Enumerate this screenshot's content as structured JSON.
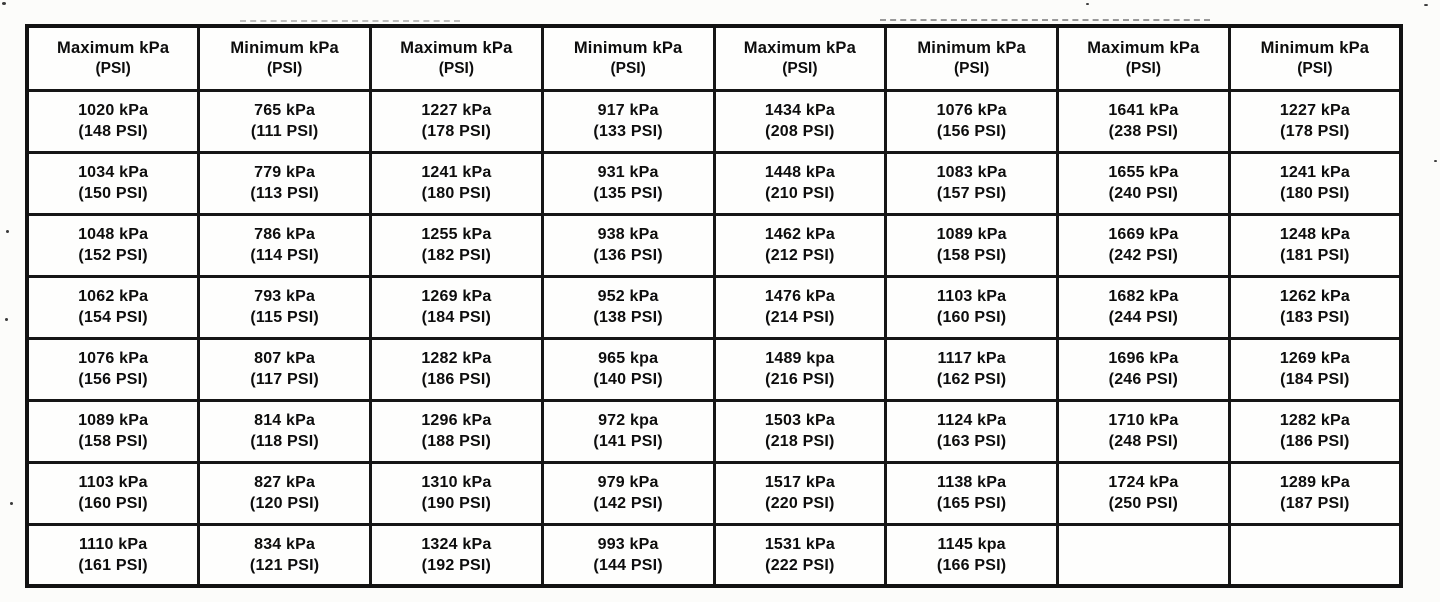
{
  "table": {
    "headers": [
      {
        "line1": "Maximum kPa",
        "line2": "(PSI)"
      },
      {
        "line1": "Minimum kPa",
        "line2": "(PSI)"
      },
      {
        "line1": "Maximum kPa",
        "line2": "(PSI)"
      },
      {
        "line1": "Minimum kPa",
        "line2": "(PSI)"
      },
      {
        "line1": "Maximum kPa",
        "line2": "(PSI)"
      },
      {
        "line1": "Minimum kPa",
        "line2": "(PSI)"
      },
      {
        "line1": "Maximum kPa",
        "line2": "(PSI)"
      },
      {
        "line1": "Minimum kPa",
        "line2": "(PSI)"
      }
    ],
    "rows": [
      [
        {
          "kpa": "1020 kPa",
          "psi": "(148 PSI)"
        },
        {
          "kpa": "765 kPa",
          "psi": "(111 PSI)"
        },
        {
          "kpa": "1227 kPa",
          "psi": "(178 PSI)"
        },
        {
          "kpa": "917 kPa",
          "psi": "(133 PSI)"
        },
        {
          "kpa": "1434 kPa",
          "psi": "(208 PSI)"
        },
        {
          "kpa": "1076 kPa",
          "psi": "(156 PSI)"
        },
        {
          "kpa": "1641 kPa",
          "psi": "(238 PSI)"
        },
        {
          "kpa": "1227 kPa",
          "psi": "(178 PSI)"
        }
      ],
      [
        {
          "kpa": "1034 kPa",
          "psi": "(150 PSI)"
        },
        {
          "kpa": "779 kPa",
          "psi": "(113 PSI)"
        },
        {
          "kpa": "1241 kPa",
          "psi": "(180 PSI)"
        },
        {
          "kpa": "931 kPa",
          "psi": "(135 PSI)"
        },
        {
          "kpa": "1448 kPa",
          "psi": "(210 PSI)"
        },
        {
          "kpa": "1083 kPa",
          "psi": "(157 PSI)"
        },
        {
          "kpa": "1655 kPa",
          "psi": "(240 PSI)"
        },
        {
          "kpa": "1241 kPa",
          "psi": "(180 PSI)"
        }
      ],
      [
        {
          "kpa": "1048 kPa",
          "psi": "(152 PSI)"
        },
        {
          "kpa": "786 kPa",
          "psi": "(114 PSI)"
        },
        {
          "kpa": "1255 kPa",
          "psi": "(182 PSI)"
        },
        {
          "kpa": "938 kPa",
          "psi": "(136 PSI)"
        },
        {
          "kpa": "1462 kPa",
          "psi": "(212 PSI)"
        },
        {
          "kpa": "1089 kPa",
          "psi": "(158 PSI)"
        },
        {
          "kpa": "1669 kPa",
          "psi": "(242 PSI)"
        },
        {
          "kpa": "1248 kPa",
          "psi": "(181 PSI)"
        }
      ],
      [
        {
          "kpa": "1062 kPa",
          "psi": "(154 PSI)"
        },
        {
          "kpa": "793 kPa",
          "psi": "(115 PSI)"
        },
        {
          "kpa": "1269 kPa",
          "psi": "(184 PSI)"
        },
        {
          "kpa": "952 kPa",
          "psi": "(138 PSI)"
        },
        {
          "kpa": "1476 kPa",
          "psi": "(214 PSI)"
        },
        {
          "kpa": "1103 kPa",
          "psi": "(160 PSI)"
        },
        {
          "kpa": "1682 kPa",
          "psi": "(244 PSI)"
        },
        {
          "kpa": "1262 kPa",
          "psi": "(183 PSI)"
        }
      ],
      [
        {
          "kpa": "1076 kPa",
          "psi": "(156 PSI)"
        },
        {
          "kpa": "807 kPa",
          "psi": "(117 PSI)"
        },
        {
          "kpa": "1282 kPa",
          "psi": "(186 PSI)"
        },
        {
          "kpa": "965 kpa",
          "psi": "(140 PSI)"
        },
        {
          "kpa": "1489 kpa",
          "psi": "(216 PSI)"
        },
        {
          "kpa": "1117 kPa",
          "psi": "(162 PSI)"
        },
        {
          "kpa": "1696 kPa",
          "psi": "(246 PSI)"
        },
        {
          "kpa": "1269 kPa",
          "psi": "(184 PSI)"
        }
      ],
      [
        {
          "kpa": "1089 kPa",
          "psi": "(158 PSI)"
        },
        {
          "kpa": "814 kPa",
          "psi": "(118 PSI)"
        },
        {
          "kpa": "1296 kPa",
          "psi": "(188 PSI)"
        },
        {
          "kpa": "972 kpa",
          "psi": "(141 PSI)"
        },
        {
          "kpa": "1503 kPa",
          "psi": "(218 PSI)"
        },
        {
          "kpa": "1124 kPa",
          "psi": "(163 PSI)"
        },
        {
          "kpa": "1710 kPa",
          "psi": "(248 PSI)"
        },
        {
          "kpa": "1282 kPa",
          "psi": "(186 PSI)"
        }
      ],
      [
        {
          "kpa": "1103 kPa",
          "psi": "(160 PSI)"
        },
        {
          "kpa": "827 kPa",
          "psi": "(120 PSI)"
        },
        {
          "kpa": "1310 kPa",
          "psi": "(190 PSI)"
        },
        {
          "kpa": "979 kPa",
          "psi": "(142 PSI)"
        },
        {
          "kpa": "1517 kPa",
          "psi": "(220 PSI)"
        },
        {
          "kpa": "1138 kPa",
          "psi": "(165 PSI)"
        },
        {
          "kpa": "1724 kPa",
          "psi": "(250 PSI)"
        },
        {
          "kpa": "1289 kPa",
          "psi": "(187 PSI)"
        }
      ],
      [
        {
          "kpa": "1110 kPa",
          "psi": "(161 PSI)"
        },
        {
          "kpa": "834 kPa",
          "psi": "(121 PSI)"
        },
        {
          "kpa": "1324 kPa",
          "psi": "(192 PSI)"
        },
        {
          "kpa": "993 kPa",
          "psi": "(144 PSI)"
        },
        {
          "kpa": "1531 kPa",
          "psi": "(222 PSI)"
        },
        {
          "kpa": "1145 kpa",
          "psi": "(166 PSI)"
        },
        {
          "kpa": "",
          "psi": ""
        },
        {
          "kpa": "",
          "psi": ""
        }
      ]
    ]
  }
}
